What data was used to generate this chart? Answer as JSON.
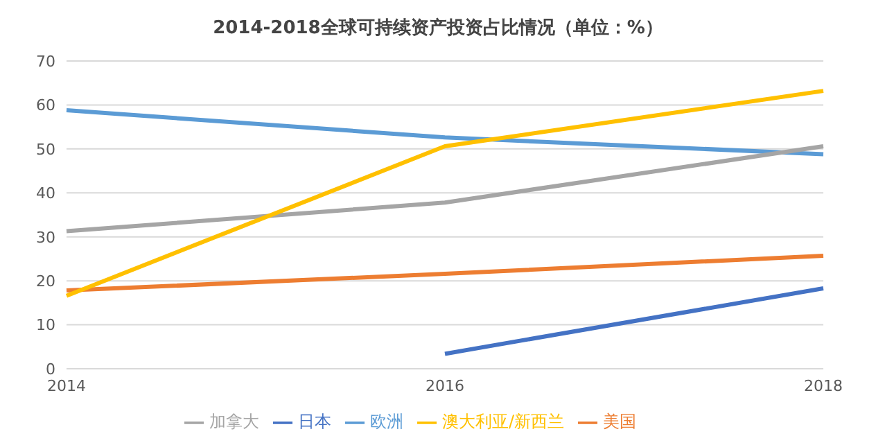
{
  "chart_data": {
    "type": "line",
    "title": "2014-2018全球可持续资产投资占比情况（单位：%）",
    "categories": [
      "2014",
      "2016",
      "2018"
    ],
    "series": [
      {
        "name": "欧洲",
        "color": "#5b9bd5",
        "values": [
          58.8,
          52.6,
          48.8
        ]
      },
      {
        "name": "美国",
        "color": "#ed7d31",
        "values": [
          17.8,
          21.6,
          25.7
        ]
      },
      {
        "name": "加拿大",
        "color": "#a5a5a5",
        "values": [
          31.3,
          37.8,
          50.6
        ]
      },
      {
        "name": "澳大利亚/新西兰",
        "color": "#ffc000",
        "values": [
          16.6,
          50.6,
          63.2
        ]
      },
      {
        "name": "日本",
        "color": "#4472c4",
        "values": [
          null,
          3.4,
          18.3
        ]
      }
    ],
    "ylim": [
      0,
      70
    ],
    "yticks": [
      0,
      10,
      20,
      30,
      40,
      50,
      60,
      70
    ],
    "grid": "y",
    "legend": "bottom",
    "marker": "none",
    "line_style": "solid"
  }
}
